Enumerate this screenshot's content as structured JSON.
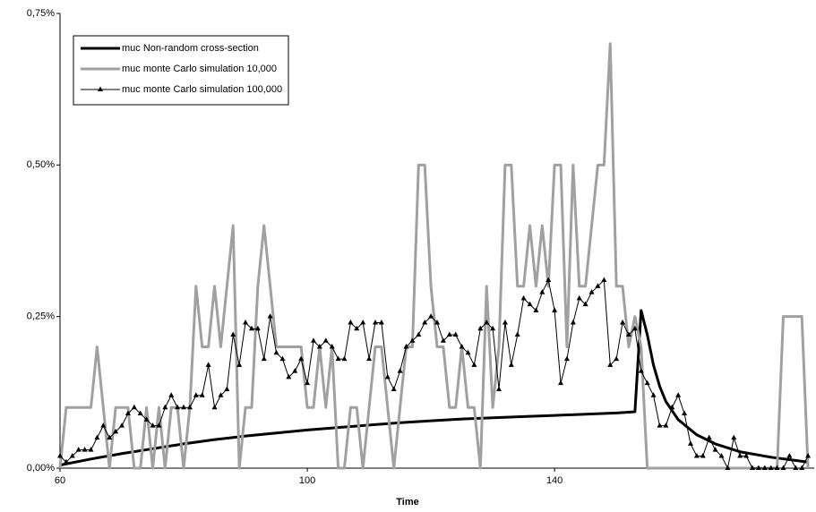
{
  "chart_data": {
    "type": "line",
    "x_label": "Time",
    "x": [
      60,
      61,
      62,
      63,
      64,
      65,
      66,
      67,
      68,
      69,
      70,
      71,
      72,
      73,
      74,
      75,
      76,
      77,
      78,
      79,
      80,
      81,
      82,
      83,
      84,
      85,
      86,
      87,
      88,
      89,
      90,
      91,
      92,
      93,
      94,
      95,
      96,
      97,
      98,
      99,
      100,
      101,
      102,
      103,
      104,
      105,
      106,
      107,
      108,
      109,
      110,
      111,
      112,
      113,
      114,
      115,
      116,
      117,
      118,
      119,
      120,
      121,
      122,
      123,
      124,
      125,
      126,
      127,
      128,
      129,
      130,
      131,
      132,
      133,
      134,
      135,
      136,
      137,
      138,
      139,
      140,
      141,
      142,
      143,
      144,
      145,
      146,
      147,
      148,
      149,
      150,
      151,
      152,
      153,
      154,
      155,
      156,
      157,
      158,
      159,
      160,
      161,
      162,
      163,
      164,
      165,
      166,
      167,
      168,
      169,
      170,
      171,
      172,
      173,
      174,
      175,
      176,
      177,
      178,
      179,
      180,
      181
    ],
    "series": [
      {
        "name": "muc Non-random cross-section",
        "color": "#000000",
        "x": [
          60,
          65,
          70,
          75,
          80,
          85,
          90,
          95,
          100,
          105,
          110,
          115,
          120,
          125,
          130,
          135,
          140,
          145,
          150,
          153,
          154,
          155,
          156,
          157,
          158,
          160,
          163,
          166,
          170,
          175,
          181
        ],
        "values": [
          0.005,
          0.015,
          0.024,
          0.032,
          0.04,
          0.047,
          0.053,
          0.058,
          0.063,
          0.067,
          0.071,
          0.075,
          0.078,
          0.081,
          0.083,
          0.085,
          0.087,
          0.089,
          0.091,
          0.093,
          0.26,
          0.22,
          0.17,
          0.135,
          0.11,
          0.08,
          0.055,
          0.04,
          0.027,
          0.018,
          0.01
        ]
      },
      {
        "name": "muc monte Carlo simulation 10,000",
        "color": "#a0a0a0",
        "values": [
          0,
          0.1,
          0.1,
          0.1,
          0.1,
          0.1,
          0.2,
          0.1,
          0,
          0.1,
          0.1,
          0.1,
          0,
          0,
          0.1,
          0,
          0.1,
          0,
          0.1,
          0.1,
          0,
          0.1,
          0.3,
          0.2,
          0.2,
          0.3,
          0.2,
          0.3,
          0.4,
          0,
          0.1,
          0.1,
          0.3,
          0.4,
          0.3,
          0.2,
          0.2,
          0.2,
          0.2,
          0.2,
          0.1,
          0.1,
          0.2,
          0.1,
          0.2,
          0,
          0,
          0.1,
          0.1,
          0,
          0.1,
          0.2,
          0.2,
          0.1,
          0,
          0.1,
          0.2,
          0.2,
          0.5,
          0.5,
          0.3,
          0.2,
          0.2,
          0.1,
          0.1,
          0.2,
          0.1,
          0.1,
          0,
          0.3,
          0.1,
          0.2,
          0.5,
          0.5,
          0.3,
          0.3,
          0.4,
          0.3,
          0.4,
          0.3,
          0.5,
          0.5,
          0.2,
          0.5,
          0.3,
          0.3,
          0.4,
          0.5,
          0.5,
          0.7,
          0.3,
          0.3,
          0.2,
          0.25,
          0.2,
          0,
          0,
          0,
          0,
          0,
          0,
          0,
          0,
          0,
          0,
          0,
          0,
          0,
          0,
          0,
          0,
          0,
          0,
          0,
          0,
          0,
          0,
          0.25,
          0.25,
          0.25,
          0.25,
          0
        ]
      },
      {
        "name": "muc monte Carlo simulation 100,000",
        "color": "#000000",
        "marker": "triangle",
        "values": [
          0.02,
          0.01,
          0.02,
          0.03,
          0.03,
          0.03,
          0.05,
          0.07,
          0.05,
          0.06,
          0.07,
          0.09,
          0.1,
          0.09,
          0.08,
          0.07,
          0.07,
          0.1,
          0.12,
          0.1,
          0.1,
          0.1,
          0.12,
          0.12,
          0.17,
          0.1,
          0.12,
          0.13,
          0.22,
          0.17,
          0.24,
          0.23,
          0.23,
          0.18,
          0.25,
          0.19,
          0.18,
          0.15,
          0.16,
          0.18,
          0.14,
          0.21,
          0.2,
          0.21,
          0.2,
          0.18,
          0.18,
          0.24,
          0.23,
          0.24,
          0.18,
          0.24,
          0.24,
          0.15,
          0.13,
          0.16,
          0.2,
          0.21,
          0.22,
          0.24,
          0.25,
          0.24,
          0.21,
          0.22,
          0.22,
          0.2,
          0.19,
          0.17,
          0.23,
          0.24,
          0.23,
          0.13,
          0.24,
          0.17,
          0.22,
          0.28,
          0.27,
          0.26,
          0.29,
          0.31,
          0.26,
          0.14,
          0.18,
          0.24,
          0.28,
          0.27,
          0.29,
          0.3,
          0.31,
          0.17,
          0.18,
          0.24,
          0.22,
          0.23,
          0.16,
          0.14,
          0.12,
          0.07,
          0.07,
          0.1,
          0.12,
          0.09,
          0.04,
          0.02,
          0.02,
          0.05,
          0.03,
          0.02,
          0,
          0.05,
          0.02,
          0.02,
          0,
          0,
          0,
          0,
          0,
          0,
          0.02,
          0,
          0,
          0.02
        ]
      }
    ],
    "xlim": [
      60,
      182
    ],
    "xticks": [
      60,
      100,
      140
    ],
    "ylim": [
      0,
      0.75
    ],
    "yticks": [
      {
        "value": 0,
        "label": "0,00%"
      },
      {
        "value": 0.25,
        "label": "0,25%"
      },
      {
        "value": 0.5,
        "label": "0,50%"
      },
      {
        "value": 0.75,
        "label": "0,75%"
      }
    ],
    "legend": "upper left",
    "grid": false
  }
}
